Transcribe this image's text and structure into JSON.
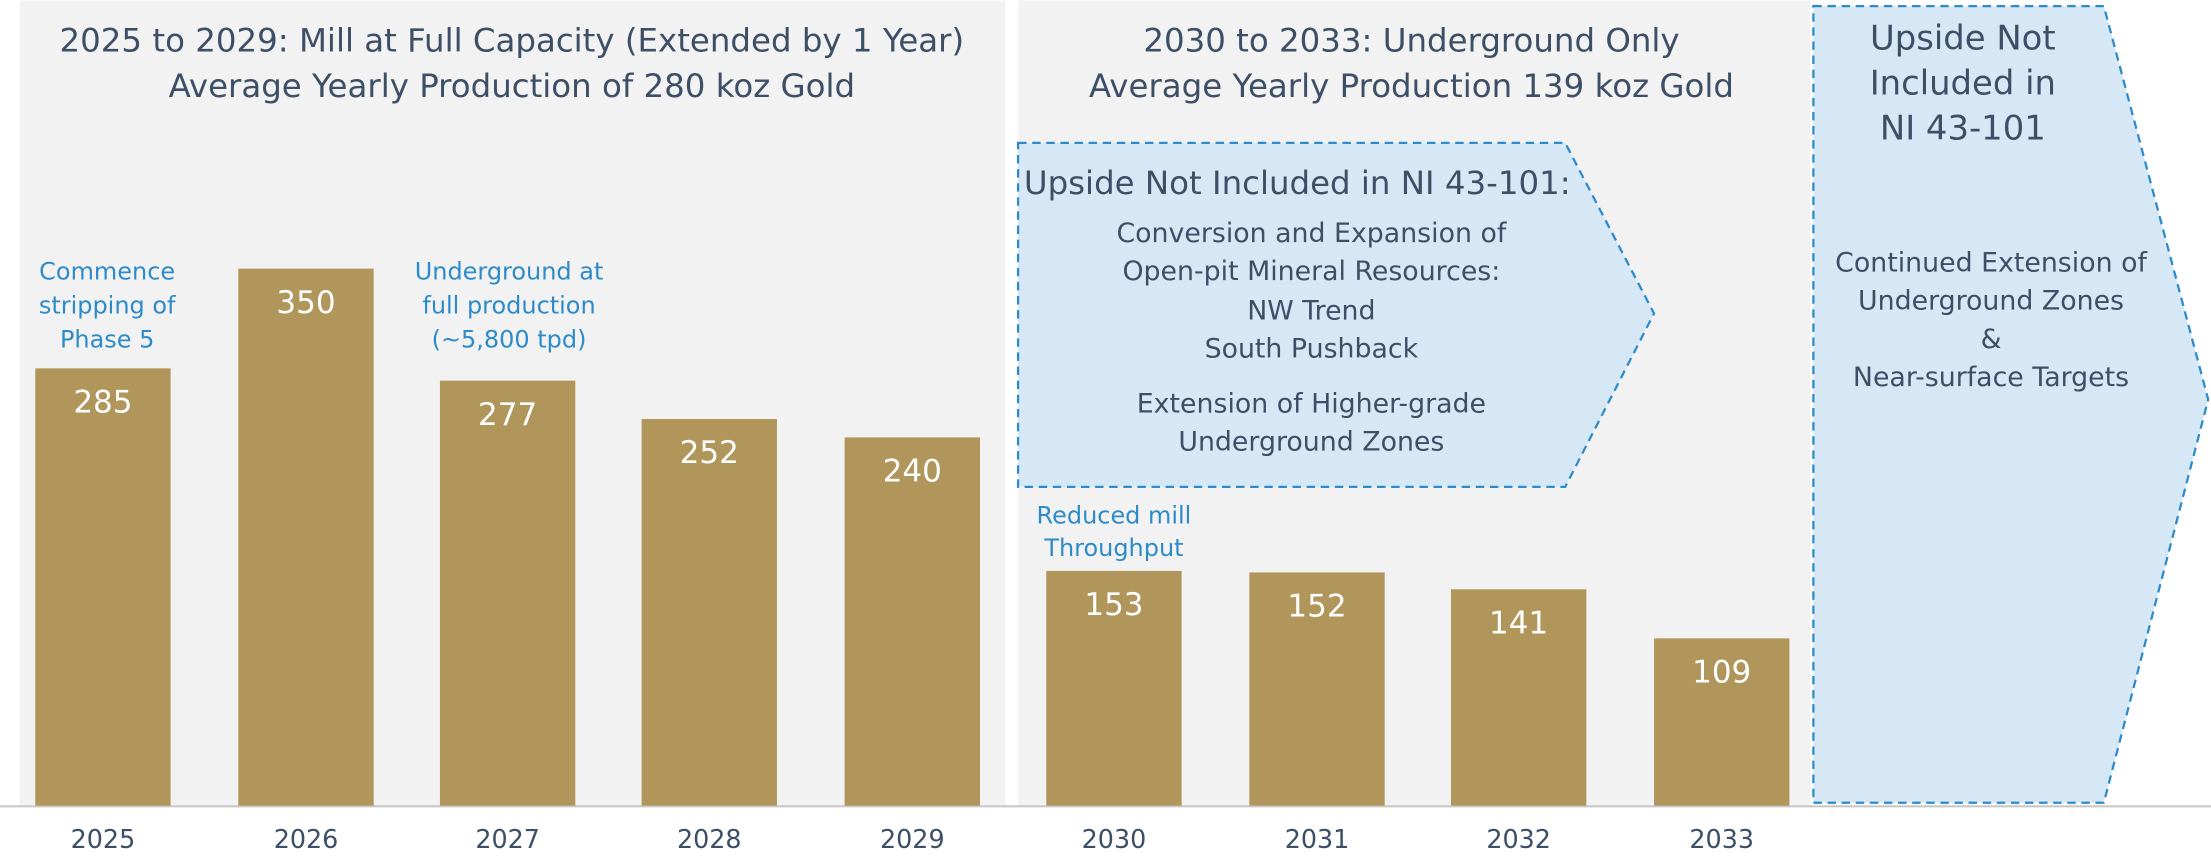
{
  "chart_data": {
    "type": "bar",
    "categories": [
      "2025",
      "2026",
      "2027",
      "2028",
      "2029",
      "2030",
      "2031",
      "2032",
      "2033"
    ],
    "values": [
      285,
      350,
      277,
      252,
      240,
      153,
      152,
      141,
      109
    ],
    "color": "#b0965a",
    "panels": [
      {
        "title": [
          "2025 to 2029: Mill at Full Capacity (Extended by 1 Year)",
          "Average Yearly Production of 280 koz Gold"
        ]
      },
      {
        "title": [
          "2030 to 2033: Underground Only",
          "Average Yearly Production 139 koz Gold"
        ]
      }
    ],
    "annotations": [
      [
        "Commence",
        "stripping of",
        "Phase 5"
      ],
      [
        "Underground at",
        "full production",
        "(~5,800 tpd)"
      ],
      [
        "Reduced mill",
        "Throughput"
      ]
    ],
    "upside_box": {
      "heading": "Upside Not Included in NI 43-101:",
      "groups": [
        {
          "title": [
            "Conversion and Expansion of",
            "Open-pit Mineral Resources:"
          ],
          "items": [
            "NW Trend",
            "South Pushback"
          ]
        },
        {
          "title": [
            "Extension of Higher-grade",
            "Underground Zones"
          ]
        }
      ]
    },
    "upside_column": {
      "heading": [
        "Upside Not",
        "Included in",
        "NI 43-101"
      ],
      "body": [
        "Continued Extension of",
        "Underground Zones",
        "&",
        "Near-surface Targets"
      ]
    }
  }
}
